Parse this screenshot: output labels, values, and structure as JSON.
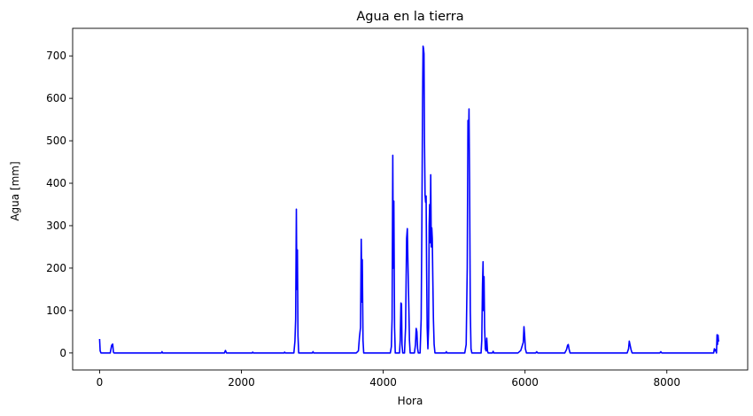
{
  "chart_data": {
    "type": "line",
    "title": "Agua en la tierra",
    "xlabel": "Hora",
    "ylabel": "Agua [mm]",
    "xlim": [
      -380,
      9140
    ],
    "ylim": [
      -40,
      765
    ],
    "xticks": [
      0,
      2000,
      4000,
      6000,
      8000
    ],
    "yticks": [
      0,
      100,
      200,
      300,
      400,
      500,
      600,
      700
    ],
    "grid": false,
    "series": [
      {
        "color": "#0000ff",
        "points": [
          [
            0,
            33
          ],
          [
            8,
            5
          ],
          [
            20,
            0
          ],
          [
            150,
            0
          ],
          [
            170,
            18
          ],
          [
            185,
            21
          ],
          [
            195,
            2
          ],
          [
            205,
            0
          ],
          [
            870,
            0
          ],
          [
            880,
            3
          ],
          [
            890,
            0
          ],
          [
            1760,
            0
          ],
          [
            1775,
            6
          ],
          [
            1790,
            0
          ],
          [
            2150,
            0
          ],
          [
            2160,
            2
          ],
          [
            2170,
            0
          ],
          [
            2600,
            0
          ],
          [
            2610,
            2
          ],
          [
            2620,
            0
          ],
          [
            2740,
            0
          ],
          [
            2755,
            28
          ],
          [
            2765,
            80
          ],
          [
            2775,
            339
          ],
          [
            2782,
            150
          ],
          [
            2790,
            243
          ],
          [
            2798,
            40
          ],
          [
            2808,
            0
          ],
          [
            3000,
            0
          ],
          [
            3010,
            3
          ],
          [
            3020,
            0
          ],
          [
            3620,
            0
          ],
          [
            3650,
            5
          ],
          [
            3665,
            38
          ],
          [
            3680,
            60
          ],
          [
            3690,
            268
          ],
          [
            3700,
            120
          ],
          [
            3705,
            220
          ],
          [
            3715,
            30
          ],
          [
            3725,
            0
          ],
          [
            4100,
            0
          ],
          [
            4115,
            15
          ],
          [
            4125,
            80
          ],
          [
            4135,
            466
          ],
          [
            4142,
            200
          ],
          [
            4150,
            358
          ],
          [
            4160,
            60
          ],
          [
            4170,
            0
          ],
          [
            4230,
            0
          ],
          [
            4240,
            30
          ],
          [
            4250,
            118
          ],
          [
            4258,
            115
          ],
          [
            4265,
            20
          ],
          [
            4275,
            0
          ],
          [
            4300,
            0
          ],
          [
            4315,
            60
          ],
          [
            4330,
            270
          ],
          [
            4340,
            293
          ],
          [
            4350,
            200
          ],
          [
            4360,
            118
          ],
          [
            4370,
            30
          ],
          [
            4380,
            0
          ],
          [
            4440,
            0
          ],
          [
            4455,
            20
          ],
          [
            4465,
            58
          ],
          [
            4475,
            50
          ],
          [
            4485,
            10
          ],
          [
            4495,
            0
          ],
          [
            4520,
            0
          ],
          [
            4535,
            80
          ],
          [
            4545,
            300
          ],
          [
            4555,
            600
          ],
          [
            4562,
            723
          ],
          [
            4568,
            718
          ],
          [
            4575,
            705
          ],
          [
            4582,
            500
          ],
          [
            4590,
            372
          ],
          [
            4598,
            355
          ],
          [
            4605,
            370
          ],
          [
            4612,
            200
          ],
          [
            4620,
            60
          ],
          [
            4630,
            10
          ],
          [
            4640,
            60
          ],
          [
            4648,
            300
          ],
          [
            4655,
            350
          ],
          [
            4662,
            260
          ],
          [
            4670,
            420
          ],
          [
            4678,
            250
          ],
          [
            4685,
            295
          ],
          [
            4692,
            270
          ],
          [
            4700,
            170
          ],
          [
            4708,
            80
          ],
          [
            4718,
            20
          ],
          [
            4730,
            0
          ],
          [
            4880,
            0
          ],
          [
            4890,
            3
          ],
          [
            4900,
            0
          ],
          [
            5150,
            0
          ],
          [
            5170,
            20
          ],
          [
            5185,
            200
          ],
          [
            5195,
            548
          ],
          [
            5203,
            500
          ],
          [
            5210,
            575
          ],
          [
            5218,
            400
          ],
          [
            5228,
            100
          ],
          [
            5238,
            10
          ],
          [
            5250,
            0
          ],
          [
            5380,
            0
          ],
          [
            5390,
            30
          ],
          [
            5400,
            160
          ],
          [
            5408,
            215
          ],
          [
            5415,
            100
          ],
          [
            5422,
            180
          ],
          [
            5430,
            60
          ],
          [
            5440,
            10
          ],
          [
            5450,
            5
          ],
          [
            5460,
            35
          ],
          [
            5470,
            5
          ],
          [
            5480,
            0
          ],
          [
            5540,
            0
          ],
          [
            5550,
            4
          ],
          [
            5560,
            0
          ],
          [
            5900,
            0
          ],
          [
            5940,
            6
          ],
          [
            5975,
            25
          ],
          [
            5985,
            62
          ],
          [
            5995,
            40
          ],
          [
            6005,
            10
          ],
          [
            6020,
            0
          ],
          [
            6150,
            0
          ],
          [
            6165,
            3
          ],
          [
            6180,
            0
          ],
          [
            6560,
            0
          ],
          [
            6585,
            8
          ],
          [
            6600,
            18
          ],
          [
            6610,
            20
          ],
          [
            6620,
            10
          ],
          [
            6635,
            0
          ],
          [
            7440,
            0
          ],
          [
            7460,
            10
          ],
          [
            7470,
            28
          ],
          [
            7480,
            20
          ],
          [
            7495,
            8
          ],
          [
            7510,
            0
          ],
          [
            7900,
            0
          ],
          [
            7915,
            3
          ],
          [
            7930,
            0
          ],
          [
            8660,
            0
          ],
          [
            8670,
            10
          ],
          [
            8680,
            5
          ],
          [
            8690,
            8
          ],
          [
            8700,
            0
          ],
          [
            8708,
            43
          ],
          [
            8715,
            20
          ],
          [
            8722,
            42
          ],
          [
            8728,
            28
          ],
          [
            8735,
            30
          ]
        ]
      }
    ]
  }
}
